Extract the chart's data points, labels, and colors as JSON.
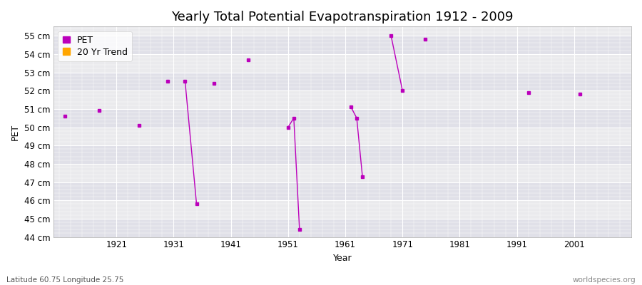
{
  "title": "Yearly Total Potential Evapotranspiration 1912 - 2009",
  "xlabel": "Year",
  "ylabel": "PET",
  "xlim": [
    1910,
    2011
  ],
  "ylim": [
    44,
    55.5
  ],
  "yticks": [
    44,
    45,
    46,
    47,
    48,
    49,
    50,
    51,
    52,
    53,
    54,
    55
  ],
  "ytick_labels": [
    "44 cm",
    "45 cm",
    "46 cm",
    "47 cm",
    "48 cm",
    "49 cm",
    "50 cm",
    "51 cm",
    "52 cm",
    "53 cm",
    "54 cm",
    "55 cm"
  ],
  "xticks": [
    1921,
    1931,
    1941,
    1951,
    1961,
    1971,
    1981,
    1991,
    2001
  ],
  "pet_color": "#bb00bb",
  "trend_color": "#ffa500",
  "bg_color": "#eaeaed",
  "bg_band_color": "#e0e0e8",
  "grid_color": "#ffffff",
  "isolated_points": [
    [
      1912,
      50.6
    ],
    [
      1918,
      50.9
    ],
    [
      1925,
      50.1
    ],
    [
      1930,
      52.5
    ],
    [
      1938,
      52.4
    ],
    [
      1944,
      53.7
    ],
    [
      1975,
      54.8
    ],
    [
      1993,
      51.9
    ],
    [
      2002,
      51.8
    ]
  ],
  "connected_segments": [
    [
      [
        1933,
        52.5
      ],
      [
        1935,
        45.8
      ]
    ],
    [
      [
        1951,
        50.0
      ],
      [
        1952,
        50.5
      ],
      [
        1953,
        44.4
      ]
    ],
    [
      [
        1962,
        51.1
      ],
      [
        1963,
        50.5
      ],
      [
        1964,
        47.3
      ]
    ],
    [
      [
        1969,
        55.0
      ],
      [
        1971,
        52.0
      ]
    ]
  ],
  "footnote_left": "Latitude 60.75 Longitude 25.75",
  "footnote_right": "worldspecies.org",
  "title_fontsize": 13,
  "label_fontsize": 9,
  "tick_fontsize": 8.5,
  "footnote_fontsize": 7.5
}
